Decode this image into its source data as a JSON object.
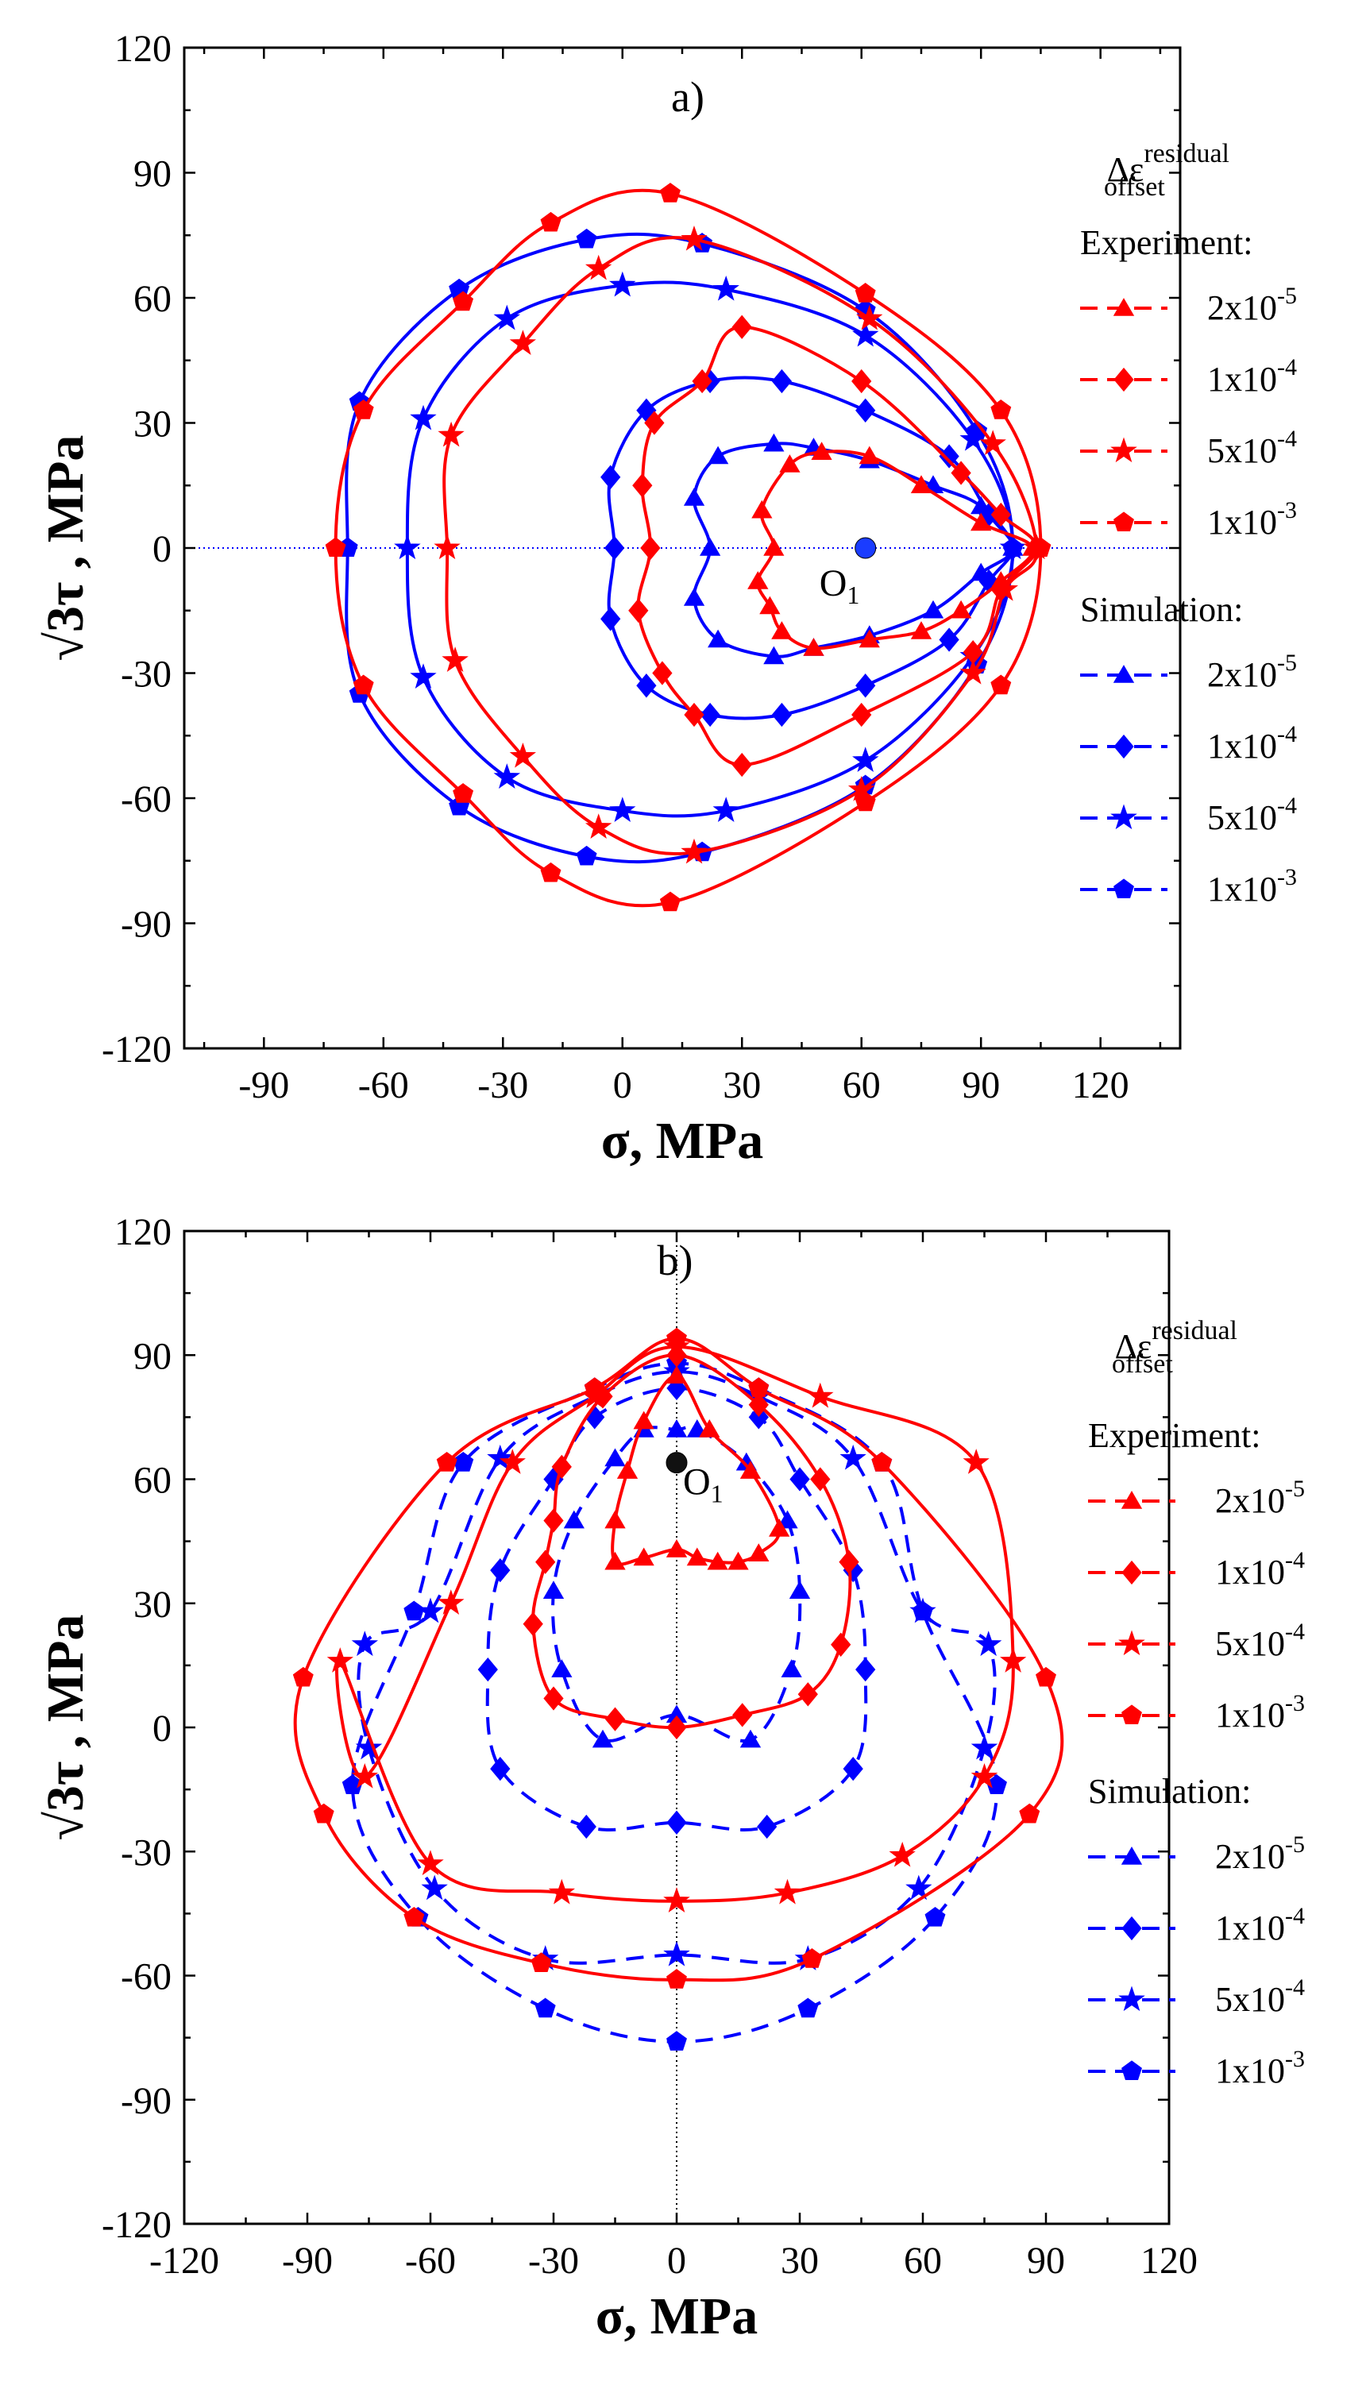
{
  "chart_data": [
    {
      "panel": "a)",
      "type": "line",
      "xlabel": "σ,  MPa",
      "ylabel": "√3τ , MPa",
      "xlim": [
        -110,
        140
      ],
      "ylim": [
        -120,
        120
      ],
      "xticks": [
        -90,
        -60,
        -30,
        0,
        30,
        60,
        90,
        120
      ],
      "yticks": [
        -120,
        -90,
        -60,
        -30,
        0,
        30,
        60,
        90,
        120
      ],
      "center": {
        "label": "O",
        "sub": "1",
        "x": 61,
        "y": 0
      },
      "legend_title": {
        "main": "Δε",
        "sup": "residual",
        "sub": "offset"
      },
      "experiment_label": "Experiment:",
      "simulation_label": "Simulation:",
      "legend_entries": [
        {
          "mantissa": "2x10",
          "exp": "-5"
        },
        {
          "mantissa": "1x10",
          "exp": "-4"
        },
        {
          "mantissa": "5x10",
          "exp": "-4"
        },
        {
          "mantissa": "1x10",
          "exp": "-3"
        }
      ],
      "experiment": [
        {
          "name": "2x10^-5",
          "marker": "triangle",
          "points": [
            [
              35,
              9
            ],
            [
              42,
              20
            ],
            [
              50,
              23
            ],
            [
              62,
              22
            ],
            [
              75,
              15
            ],
            [
              90,
              6
            ],
            [
              103,
              0
            ],
            [
              95,
              -8
            ],
            [
              85,
              -15
            ],
            [
              75,
              -20
            ],
            [
              62,
              -22
            ],
            [
              48,
              -24
            ],
            [
              40,
              -20
            ],
            [
              37,
              -14
            ],
            [
              34,
              -8
            ],
            [
              38,
              0
            ]
          ]
        },
        {
          "name": "1x10^-4",
          "marker": "diamond",
          "points": [
            [
              5,
              15
            ],
            [
              8,
              30
            ],
            [
              20,
              40
            ],
            [
              30,
              53
            ],
            [
              60,
              40
            ],
            [
              85,
              18
            ],
            [
              95,
              8
            ],
            [
              104,
              0
            ],
            [
              95,
              -10
            ],
            [
              88,
              -25
            ],
            [
              60,
              -40
            ],
            [
              30,
              -52
            ],
            [
              18,
              -40
            ],
            [
              10,
              -30
            ],
            [
              4,
              -15
            ],
            [
              7,
              0
            ]
          ]
        },
        {
          "name": "5x10^-4",
          "marker": "star",
          "points": [
            [
              -43,
              27
            ],
            [
              -25,
              49
            ],
            [
              -6,
              67
            ],
            [
              18,
              74
            ],
            [
              62,
              55
            ],
            [
              93,
              25
            ],
            [
              104,
              0
            ],
            [
              96,
              -10
            ],
            [
              88,
              -30
            ],
            [
              60,
              -58
            ],
            [
              18,
              -73
            ],
            [
              -6,
              -67
            ],
            [
              -25,
              -50
            ],
            [
              -42,
              -27
            ],
            [
              -44,
              0
            ]
          ]
        },
        {
          "name": "1x10^-3",
          "marker": "pentagon",
          "points": [
            [
              -65,
              33
            ],
            [
              -40,
              59
            ],
            [
              -18,
              78
            ],
            [
              12,
              85
            ],
            [
              61,
              61
            ],
            [
              95,
              33
            ],
            [
              105,
              0
            ],
            [
              95,
              -33
            ],
            [
              61,
              -61
            ],
            [
              12,
              -85
            ],
            [
              -18,
              -78
            ],
            [
              -40,
              -59
            ],
            [
              -65,
              -33
            ],
            [
              -72,
              0
            ]
          ]
        }
      ],
      "simulation": [
        {
          "name": "2x10^-5",
          "marker": "triangle",
          "points": [
            [
              18,
              12
            ],
            [
              24,
              22
            ],
            [
              38,
              25
            ],
            [
              48,
              24
            ],
            [
              62,
              21
            ],
            [
              78,
              15
            ],
            [
              90,
              10
            ],
            [
              98,
              0
            ],
            [
              90,
              -6
            ],
            [
              78,
              -15
            ],
            [
              62,
              -21
            ],
            [
              48,
              -24
            ],
            [
              38,
              -26
            ],
            [
              24,
              -22
            ],
            [
              18,
              -12
            ],
            [
              22,
              0
            ]
          ]
        },
        {
          "name": "1x10^-4",
          "marker": "diamond",
          "points": [
            [
              -3,
              17
            ],
            [
              6,
              33
            ],
            [
              22,
              40
            ],
            [
              40,
              40
            ],
            [
              61,
              33
            ],
            [
              82,
              22
            ],
            [
              92,
              8
            ],
            [
              98,
              0
            ],
            [
              92,
              -8
            ],
            [
              82,
              -22
            ],
            [
              61,
              -33
            ],
            [
              40,
              -40
            ],
            [
              22,
              -40
            ],
            [
              6,
              -33
            ],
            [
              -3,
              -17
            ],
            [
              -2,
              0
            ]
          ]
        },
        {
          "name": "5x10^-4",
          "marker": "star",
          "points": [
            [
              -50,
              31
            ],
            [
              -29,
              55
            ],
            [
              0,
              63
            ],
            [
              26,
              62
            ],
            [
              61,
              51
            ],
            [
              88,
              26
            ],
            [
              98,
              0
            ],
            [
              88,
              -26
            ],
            [
              61,
              -51
            ],
            [
              26,
              -63
            ],
            [
              0,
              -63
            ],
            [
              -29,
              -55
            ],
            [
              -50,
              -31
            ],
            [
              -54,
              0
            ]
          ]
        },
        {
          "name": "1x10^-3",
          "marker": "pentagon",
          "points": [
            [
              -66,
              35
            ],
            [
              -41,
              62
            ],
            [
              -9,
              74
            ],
            [
              20,
              73
            ],
            [
              61,
              57
            ],
            [
              89,
              28
            ],
            [
              98,
              0
            ],
            [
              89,
              -28
            ],
            [
              61,
              -57
            ],
            [
              20,
              -73
            ],
            [
              -9,
              -74
            ],
            [
              -41,
              -62
            ],
            [
              -66,
              -35
            ],
            [
              -69,
              0
            ]
          ]
        }
      ]
    },
    {
      "panel": "b)",
      "type": "line",
      "xlabel": "σ,  MPa",
      "ylabel": "√3τ , MPa",
      "xlim": [
        -120,
        120
      ],
      "ylim": [
        -120,
        120
      ],
      "xticks": [
        -120,
        -90,
        -60,
        -30,
        0,
        30,
        60,
        90,
        120
      ],
      "yticks": [
        -120,
        -90,
        -60,
        -30,
        0,
        30,
        60,
        90,
        120
      ],
      "center": {
        "label": "O",
        "sub": "1",
        "x": 0,
        "y": 64
      },
      "legend_title": {
        "main": "Δε",
        "sup": "residual",
        "sub": "offset"
      },
      "experiment_label": "Experiment:",
      "simulation_label": "Simulation:",
      "legend_entries": [
        {
          "mantissa": "2x10",
          "exp": "-5"
        },
        {
          "mantissa": "1x10",
          "exp": "-4"
        },
        {
          "mantissa": "5x10",
          "exp": "-4"
        },
        {
          "mantissa": "1x10",
          "exp": "-3"
        }
      ],
      "experiment": [
        {
          "name": "2x10^-5",
          "marker": "triangle",
          "points": [
            [
              5,
              41
            ],
            [
              10,
              40
            ],
            [
              15,
              40
            ],
            [
              20,
              42
            ],
            [
              25,
              48
            ],
            [
              18,
              62
            ],
            [
              8,
              72
            ],
            [
              0,
              85
            ],
            [
              -8,
              74
            ],
            [
              -12,
              62
            ],
            [
              -15,
              50
            ],
            [
              -15,
              40
            ],
            [
              -8,
              41
            ],
            [
              0,
              43
            ]
          ]
        },
        {
          "name": "1x10^-4",
          "marker": "diamond",
          "points": [
            [
              16,
              3
            ],
            [
              32,
              8
            ],
            [
              40,
              20
            ],
            [
              42,
              40
            ],
            [
              35,
              60
            ],
            [
              20,
              78
            ],
            [
              0,
              90
            ],
            [
              -18,
              80
            ],
            [
              -28,
              63
            ],
            [
              -30,
              50
            ],
            [
              -32,
              40
            ],
            [
              -35,
              25
            ],
            [
              -30,
              7
            ],
            [
              -15,
              2
            ],
            [
              0,
              0
            ]
          ]
        },
        {
          "name": "5x10^-4",
          "marker": "star",
          "points": [
            [
              27,
              -40
            ],
            [
              55,
              -31
            ],
            [
              75,
              -12
            ],
            [
              82,
              16
            ],
            [
              73,
              64
            ],
            [
              35,
              80
            ],
            [
              0,
              92
            ],
            [
              -20,
              80
            ],
            [
              -40,
              64
            ],
            [
              -55,
              30
            ],
            [
              -76,
              -12
            ],
            [
              -82,
              16
            ],
            [
              -60,
              -33
            ],
            [
              -28,
              -40
            ],
            [
              0,
              -42
            ]
          ]
        },
        {
          "name": "1x10^-3",
          "marker": "pentagon",
          "points": [
            [
              33,
              -56
            ],
            [
              86,
              -21
            ],
            [
              90,
              12
            ],
            [
              50,
              64
            ],
            [
              20,
              82
            ],
            [
              0,
              94
            ],
            [
              -20,
              82
            ],
            [
              -56,
              64
            ],
            [
              -91,
              12
            ],
            [
              -86,
              -21
            ],
            [
              -64,
              -46
            ],
            [
              -33,
              -57
            ],
            [
              0,
              -61
            ]
          ]
        }
      ],
      "simulation": [
        {
          "name": "2x10^-5",
          "marker": "triangle",
          "points": [
            [
              27,
              50
            ],
            [
              17,
              64
            ],
            [
              5,
              72
            ],
            [
              0,
              72
            ],
            [
              -8,
              72
            ],
            [
              -15,
              65
            ],
            [
              -25,
              50
            ],
            [
              -30,
              33
            ],
            [
              -28,
              14
            ],
            [
              -18,
              -3
            ],
            [
              0,
              3
            ],
            [
              18,
              -3
            ],
            [
              28,
              14
            ],
            [
              30,
              33
            ]
          ]
        },
        {
          "name": "1x10^-4",
          "marker": "diamond",
          "points": [
            [
              43,
              38
            ],
            [
              30,
              60
            ],
            [
              20,
              75
            ],
            [
              0,
              82
            ],
            [
              -20,
              75
            ],
            [
              -30,
              60
            ],
            [
              -43,
              38
            ],
            [
              -46,
              14
            ],
            [
              -43,
              -10
            ],
            [
              -22,
              -24
            ],
            [
              0,
              -23
            ],
            [
              22,
              -24
            ],
            [
              43,
              -10
            ],
            [
              46,
              14
            ]
          ]
        },
        {
          "name": "5x10^-4",
          "marker": "star",
          "points": [
            [
              59,
              -39
            ],
            [
              75,
              -5
            ],
            [
              76,
              20
            ],
            [
              60,
              28
            ],
            [
              43,
              65
            ],
            [
              20,
              80
            ],
            [
              0,
              86
            ],
            [
              -20,
              80
            ],
            [
              -43,
              65
            ],
            [
              -60,
              28
            ],
            [
              -76,
              20
            ],
            [
              -75,
              -5
            ],
            [
              -59,
              -39
            ],
            [
              -32,
              -56
            ],
            [
              0,
              -55
            ],
            [
              32,
              -56
            ]
          ]
        },
        {
          "name": "1x10^-3",
          "marker": "pentagon",
          "points": [
            [
              63,
              -46
            ],
            [
              78,
              -14
            ],
            [
              60,
              28
            ],
            [
              50,
              64
            ],
            [
              20,
              82
            ],
            [
              0,
              88
            ],
            [
              -20,
              82
            ],
            [
              -52,
              64
            ],
            [
              -64,
              28
            ],
            [
              -79,
              -14
            ],
            [
              -63,
              -46
            ],
            [
              -32,
              -68
            ],
            [
              0,
              -76
            ],
            [
              32,
              -68
            ]
          ]
        }
      ]
    }
  ],
  "colors": {
    "experiment": "#ff0000",
    "simulation": "#0000ff",
    "axis": "#000000"
  }
}
